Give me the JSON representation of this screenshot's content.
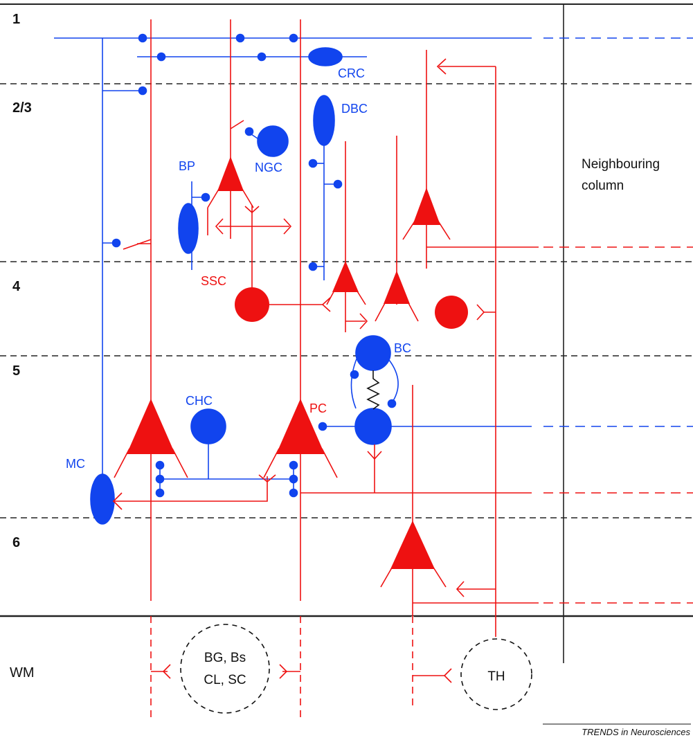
{
  "colors": {
    "excitatory": "#ee1111",
    "inhibitory": "#1144ee",
    "boundary": "#222222"
  },
  "layers": [
    "1",
    "2/3",
    "4",
    "5",
    "6",
    "WM"
  ],
  "neighbouring": [
    "Neighbouring",
    "column"
  ],
  "cell_labels": {
    "crc": "CRC",
    "dbc": "DBC",
    "ngc": "NGC",
    "bp": "BP",
    "ssc": "SSC",
    "bc": "BC",
    "chc": "CHC",
    "pc": "PC",
    "mc": "MC"
  },
  "targets": {
    "bg_line1": "BG, Bs",
    "bg_line2": "CL, SC",
    "th": "TH"
  },
  "credit": "TRENDS in Neurosciences"
}
